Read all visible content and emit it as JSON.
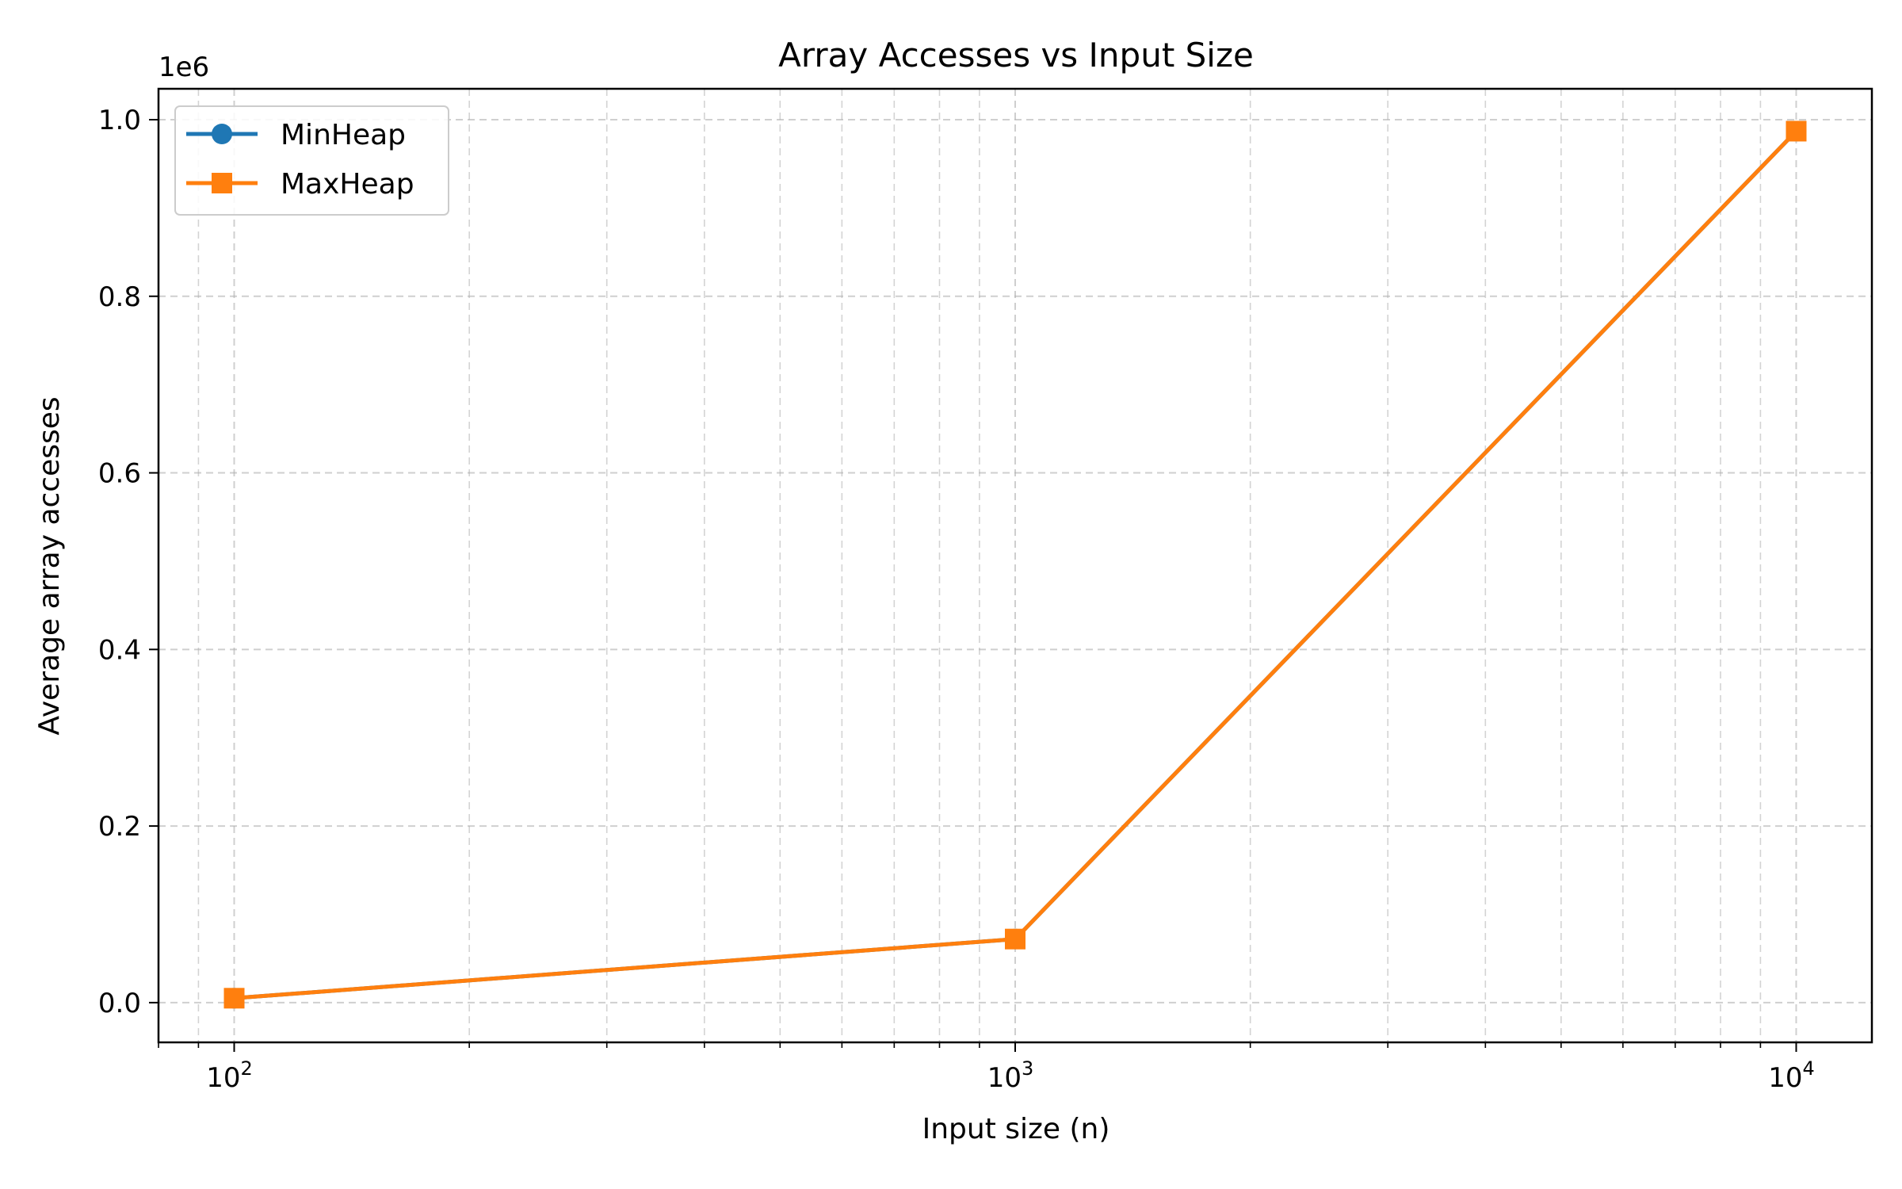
{
  "chart_data": {
    "type": "line",
    "title": "Array Accesses vs Input Size",
    "xlabel": "Input size (n)",
    "ylabel": "Average array accesses",
    "x_scale": "log",
    "xlim": [
      80,
      12500
    ],
    "ylim": [
      -45000,
      1035000
    ],
    "y_offset_label": "1e6",
    "x_ticks": [
      {
        "value": 100,
        "base": "10",
        "exp": "2"
      },
      {
        "value": 1000,
        "base": "10",
        "exp": "3"
      },
      {
        "value": 10000,
        "base": "10",
        "exp": "4"
      }
    ],
    "y_ticks": [
      {
        "value": 0,
        "label": "0.0"
      },
      {
        "value": 200000,
        "label": "0.2"
      },
      {
        "value": 400000,
        "label": "0.4"
      },
      {
        "value": 600000,
        "label": "0.6"
      },
      {
        "value": 800000,
        "label": "0.8"
      },
      {
        "value": 1000000,
        "label": "1.0"
      }
    ],
    "grid": true,
    "legend_position": "top-left",
    "x": [
      100,
      1000,
      10000
    ],
    "series": [
      {
        "name": "MinHeap",
        "color": "#1f77b4",
        "marker": "circle",
        "values": [
          5000,
          72000,
          987000
        ]
      },
      {
        "name": "MaxHeap",
        "color": "#ff7f0e",
        "marker": "square",
        "values": [
          5000,
          72000,
          987000
        ]
      }
    ]
  }
}
